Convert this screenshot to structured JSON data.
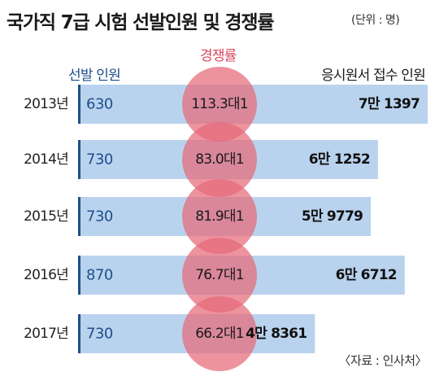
{
  "header": {
    "title": "국가직 7급 시험 선발인원 및 경쟁률",
    "unit": "(단위 : 명)",
    "col_selected": "선발 인원",
    "col_competition": "경쟁률",
    "col_applicants": "응시원서 접수 인원"
  },
  "source": "〈자료 : 인사처〉",
  "colors": {
    "bar": "#b9d3ee",
    "bar_edge": "#1f4e8c",
    "selected_text": "#1f4e8c",
    "circle": "#e46a78",
    "competition_header": "#d9485f"
  },
  "chart_data": {
    "type": "bar",
    "categories": [
      "2013년",
      "2014년",
      "2015년",
      "2016년",
      "2017년"
    ],
    "series": [
      {
        "name": "선발 인원",
        "values": [
          630,
          730,
          730,
          870,
          730
        ],
        "labels": [
          "630",
          "730",
          "730",
          "870",
          "730"
        ]
      },
      {
        "name": "경쟁률",
        "values": [
          113.3,
          83.0,
          81.9,
          76.7,
          66.2
        ],
        "labels": [
          "113.3대1",
          "83.0대1",
          "81.9대1",
          "76.7대1",
          "66.2대1"
        ]
      },
      {
        "name": "응시원서 접수 인원",
        "values": [
          71397,
          61252,
          59779,
          66712,
          48361
        ],
        "labels": [
          "7만 1397",
          "6만 1252",
          "5만 9779",
          "6만 6712",
          "4만 8361"
        ]
      }
    ]
  }
}
